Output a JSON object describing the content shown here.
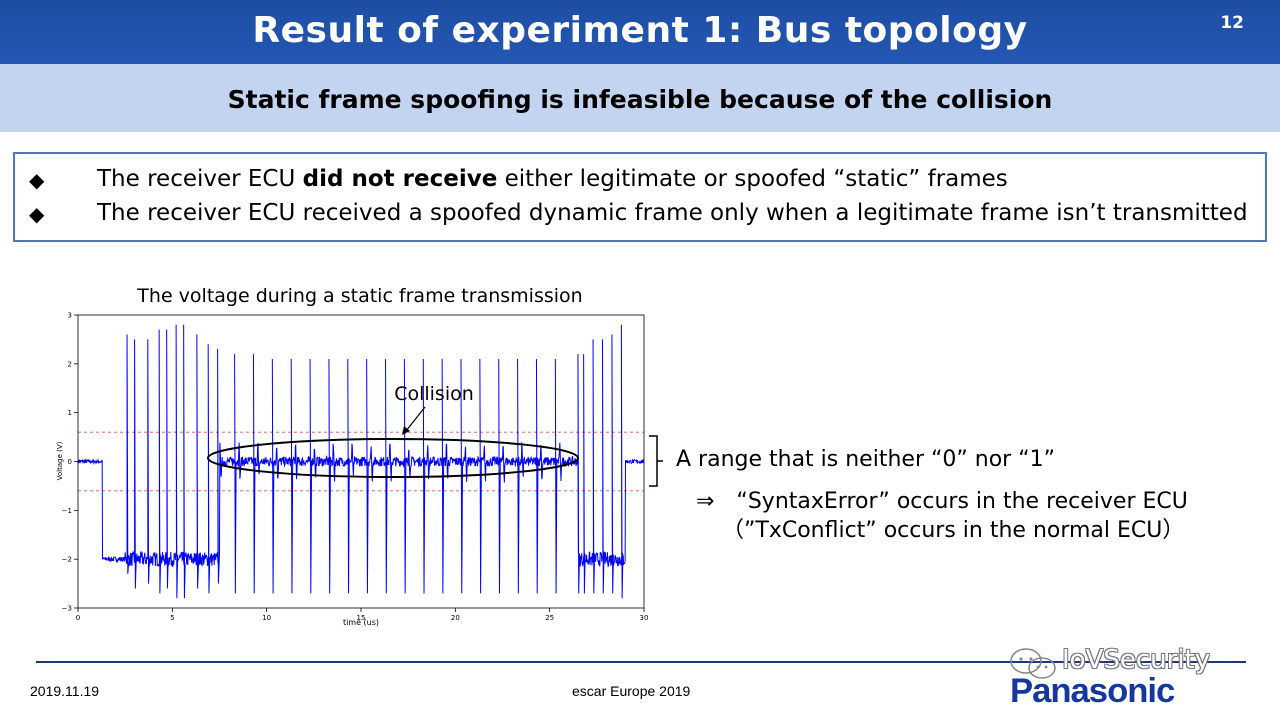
{
  "header": {
    "title": "Result of experiment 1: Bus topology",
    "page_number": "12",
    "subtitle": "Static frame spoofing is infeasible because of the collision"
  },
  "bullets": [
    {
      "pre": "The receiver ECU ",
      "bold": "did not receive",
      "post": " either legitimate or spoofed “static” frames"
    },
    {
      "pre": "The receiver ECU received a spoofed dynamic frame only when a legitimate frame isn’t transmitted",
      "bold": "",
      "post": ""
    }
  ],
  "chart_data": {
    "type": "line",
    "title": "The voltage during a static frame transmission",
    "xlabel": "time (us)",
    "ylabel": "Voltage (V)",
    "xlim": [
      0,
      30
    ],
    "ylim": [
      -3,
      3
    ],
    "xticks": [
      0,
      5,
      10,
      15,
      20,
      25,
      30
    ],
    "yticks": [
      -3,
      -2,
      -1,
      0,
      1,
      2,
      3
    ],
    "threshold_lines": [
      0.6,
      -0.6
    ],
    "grid": false,
    "series": [
      {
        "color": "#0000ff",
        "segments": [
          {
            "x_start": 0.0,
            "x_end": 1.3,
            "level": 0.0,
            "noise": 0.04
          },
          {
            "x_start": 1.3,
            "x_end": 2.5,
            "level": -2.0,
            "noise": 0.05
          },
          {
            "x_start": 2.5,
            "x_end": 7.5,
            "level": -2.0,
            "noise": 0.15
          },
          {
            "x_start": 7.5,
            "x_end": 26.5,
            "level": 0.0,
            "noise": 0.1
          },
          {
            "x_start": 26.5,
            "x_end": 29.0,
            "level": -2.0,
            "noise": 0.15
          },
          {
            "x_start": 29.0,
            "x_end": 30.0,
            "level": 0.0,
            "noise": 0.04
          }
        ],
        "spikes": [
          {
            "x": 2.6,
            "high": 2.6,
            "low": -2.3
          },
          {
            "x": 3.0,
            "high": 2.5,
            "low": -2.6
          },
          {
            "x": 3.7,
            "high": 2.5,
            "low": -2.5
          },
          {
            "x": 4.3,
            "high": 2.7,
            "low": -2.7
          },
          {
            "x": 4.7,
            "high": 2.7,
            "low": -2.6
          },
          {
            "x": 5.2,
            "high": 2.8,
            "low": -2.8
          },
          {
            "x": 5.6,
            "high": 2.8,
            "low": -2.8
          },
          {
            "x": 6.3,
            "high": 2.6,
            "low": -2.6
          },
          {
            "x": 6.9,
            "high": 2.4,
            "low": -2.7
          },
          {
            "x": 7.4,
            "high": 2.3,
            "low": -2.5
          },
          {
            "x": 8.3,
            "high": 2.2,
            "low": -2.7
          },
          {
            "x": 9.3,
            "high": 2.2,
            "low": -2.7
          },
          {
            "x": 10.3,
            "high": 2.1,
            "low": -2.7
          },
          {
            "x": 11.3,
            "high": 2.1,
            "low": -2.7
          },
          {
            "x": 12.3,
            "high": 2.1,
            "low": -2.7
          },
          {
            "x": 13.3,
            "high": 2.1,
            "low": -2.7
          },
          {
            "x": 14.3,
            "high": 2.1,
            "low": -2.7
          },
          {
            "x": 15.3,
            "high": 2.1,
            "low": -2.7
          },
          {
            "x": 16.3,
            "high": 2.1,
            "low": -2.7
          },
          {
            "x": 17.3,
            "high": 2.1,
            "low": -2.7
          },
          {
            "x": 18.3,
            "high": 2.1,
            "low": -2.7
          },
          {
            "x": 19.3,
            "high": 2.1,
            "low": -2.7
          },
          {
            "x": 20.3,
            "high": 2.1,
            "low": -2.7
          },
          {
            "x": 21.3,
            "high": 2.1,
            "low": -2.7
          },
          {
            "x": 22.3,
            "high": 2.1,
            "low": -2.7
          },
          {
            "x": 23.3,
            "high": 2.1,
            "low": -2.7
          },
          {
            "x": 24.3,
            "high": 2.1,
            "low": -2.7
          },
          {
            "x": 25.3,
            "high": 2.1,
            "low": -2.7
          },
          {
            "x": 26.5,
            "high": 2.2,
            "low": -2.7
          },
          {
            "x": 26.8,
            "high": 2.2,
            "low": -2.7
          },
          {
            "x": 27.3,
            "high": 2.5,
            "low": -2.7
          },
          {
            "x": 27.8,
            "high": 2.5,
            "low": -2.7
          },
          {
            "x": 28.3,
            "high": 2.6,
            "low": -2.7
          },
          {
            "x": 28.8,
            "high": 2.8,
            "low": -2.8
          }
        ]
      }
    ],
    "annotation": "Collision"
  },
  "annotations": {
    "range_text": "A range that is neither “0” nor “1”",
    "arrow_text": "⇒　“SyntaxError” occurs in the receiver ECU",
    "paren_text": "（”TxConflict” occurs in the normal ECU）"
  },
  "footer": {
    "date": "2019.11.19",
    "event": "escar Europe 2019",
    "watermark": "IoVSecurity",
    "logo": "Panasonic"
  },
  "icons": {
    "bullet": "diamond-icon",
    "watermark": "wechat-icon"
  }
}
